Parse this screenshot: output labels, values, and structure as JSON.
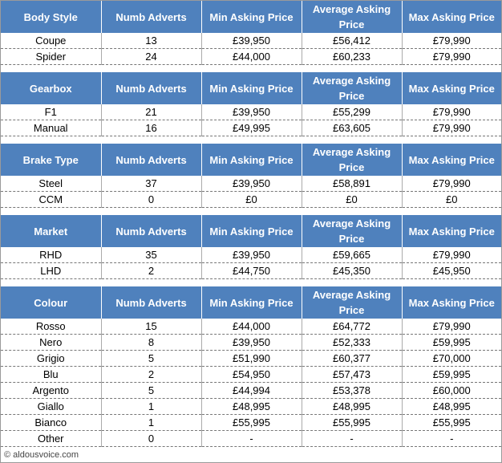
{
  "tables": [
    {
      "header": [
        "Body Style",
        "Numb Adverts",
        "Min Asking Price",
        "Average Asking Price",
        "Max Asking Price"
      ],
      "rows": [
        [
          "Coupe",
          "13",
          "£39,950",
          "£56,412",
          "£79,990"
        ],
        [
          "Spider",
          "24",
          "£44,000",
          "£60,233",
          "£79,990"
        ]
      ]
    },
    {
      "header": [
        "Gearbox",
        "Numb Adverts",
        "Min Asking Price",
        "Average Asking Price",
        "Max Asking Price"
      ],
      "rows": [
        [
          "F1",
          "21",
          "£39,950",
          "£55,299",
          "£79,990"
        ],
        [
          "Manual",
          "16",
          "£49,995",
          "£63,605",
          "£79,990"
        ]
      ]
    },
    {
      "header": [
        "Brake Type",
        "Numb Adverts",
        "Min Asking Price",
        "Average Asking Price",
        "Max Asking Price"
      ],
      "rows": [
        [
          "Steel",
          "37",
          "£39,950",
          "£58,891",
          "£79,990"
        ],
        [
          "CCM",
          "0",
          "£0",
          "£0",
          "£0"
        ]
      ]
    },
    {
      "header": [
        "Market",
        "Numb Adverts",
        "Min Asking Price",
        "Average Asking Price",
        "Max Asking Price"
      ],
      "rows": [
        [
          "RHD",
          "35",
          "£39,950",
          "£59,665",
          "£79,990"
        ],
        [
          "LHD",
          "2",
          "£44,750",
          "£45,350",
          "£45,950"
        ]
      ]
    },
    {
      "header": [
        "Colour",
        "Numb Adverts",
        "Min Asking Price",
        "Average Asking Price",
        "Max Asking Price"
      ],
      "rows": [
        [
          "Rosso",
          "15",
          "£44,000",
          "£64,772",
          "£79,990"
        ],
        [
          "Nero",
          "8",
          "£39,950",
          "£52,333",
          "£59,995"
        ],
        [
          "Grigio",
          "5",
          "£51,990",
          "£60,377",
          "£70,000"
        ],
        [
          "Blu",
          "2",
          "£54,950",
          "£57,473",
          "£59,995"
        ],
        [
          "Argento",
          "5",
          "£44,994",
          "£53,378",
          "£60,000"
        ],
        [
          "Giallo",
          "1",
          "£48,995",
          "£48,995",
          "£48,995"
        ],
        [
          "Bianco",
          "1",
          "£55,995",
          "£55,995",
          "£55,995"
        ],
        [
          "Other",
          "0",
          "-",
          "-",
          "-"
        ]
      ]
    }
  ],
  "footer": "© aldousvoice.com"
}
